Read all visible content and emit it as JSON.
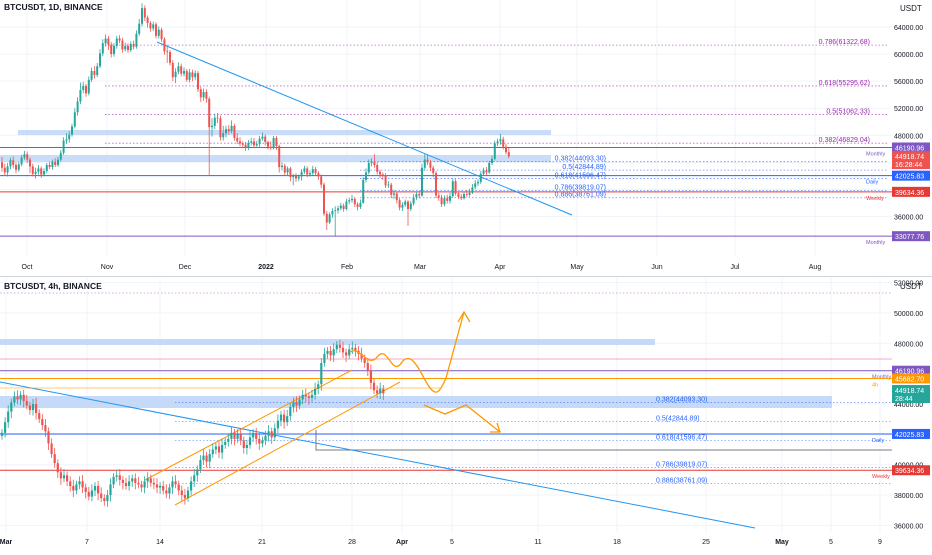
{
  "top_panel": {
    "title": "BTCUSDT, 1D, BINANCE",
    "currency": "USDT",
    "ylim": [
      30000,
      68000
    ],
    "y_ticks": [
      36000,
      40000,
      44000,
      48000,
      52000,
      56000,
      60000,
      64000
    ],
    "y_tick_labels": [
      "36000.00",
      "40000.00",
      "44000.00",
      "48000.00",
      "52000.00",
      "56000.00",
      "60000.00",
      "64000.00"
    ],
    "x_labels": [
      "Oct",
      "Nov",
      "Dec",
      "2022",
      "Feb",
      "Mar",
      "Apr",
      "May",
      "Jun",
      "Jul",
      "Aug"
    ],
    "fib_levels": [
      {
        "label": "0.786(61322.68)",
        "value": 61322.68,
        "color": "#9c27b0"
      },
      {
        "label": "0.618(55295.62)",
        "value": 55295.62,
        "color": "#9c27b0"
      },
      {
        "label": "0.5(51062.33)",
        "value": 51062.33,
        "color": "#9c27b0"
      },
      {
        "label": "0.382(46829.04)",
        "value": 46829.04,
        "color": "#9c27b0"
      },
      {
        "label": "0.382(44093.30)",
        "value": 44093.3,
        "color": "#2962ff"
      },
      {
        "label": "0.5(42844.89)",
        "value": 42844.89,
        "color": "#2962ff"
      },
      {
        "label": "0.618(41596.47)",
        "value": 41596.47,
        "color": "#2962ff"
      },
      {
        "label": "0.786(39819.07)",
        "value": 39819.07,
        "color": "#2962ff"
      },
      {
        "label": "0.886(38761.09)",
        "value": 38761.09,
        "color": "#2962ff"
      }
    ],
    "level_lines": [
      {
        "value": 46190.96,
        "label": "46190.96",
        "tag": "Monthly",
        "color": "#7e57c2"
      },
      {
        "value": 42025.83,
        "label": "42025.83",
        "tag": "Daily",
        "color": "#2962ff"
      },
      {
        "value": 39634.36,
        "label": "39634.36",
        "tag": "Weekly",
        "color": "#e53935"
      },
      {
        "value": 33077.76,
        "label": "33077.76",
        "tag": "Monthly",
        "color": "#7e57c2"
      }
    ],
    "price_tag": {
      "value": 44918.74,
      "label": "44918.74",
      "sub": "16:28:44",
      "color": "#ef5350"
    },
    "candles": [
      [
        44000,
        43200,
        44800,
        42600
      ],
      [
        43200,
        42500,
        43800,
        42000
      ],
      [
        42500,
        43400,
        43900,
        41900
      ],
      [
        43400,
        44300,
        44700,
        43000
      ],
      [
        44300,
        43600,
        44900,
        43100
      ],
      [
        43600,
        42900,
        44000,
        42400
      ],
      [
        42900,
        43700,
        44100,
        42600
      ],
      [
        43700,
        44700,
        45100,
        43400
      ],
      [
        44700,
        45200,
        45700,
        44400
      ],
      [
        45200,
        44400,
        45600,
        43900
      ],
      [
        44400,
        43400,
        44700,
        42400
      ],
      [
        43400,
        42300,
        43800,
        41900
      ],
      [
        42300,
        42600,
        43200,
        41600
      ],
      [
        42600,
        43100,
        43600,
        42200
      ],
      [
        43100,
        42200,
        43400,
        41700
      ],
      [
        42200,
        42700,
        43100,
        41900
      ],
      [
        42700,
        43600,
        43900,
        42400
      ],
      [
        43600,
        43300,
        44100,
        43000
      ],
      [
        43300,
        44100,
        44400,
        42900
      ],
      [
        44100,
        43600,
        44600,
        43300
      ],
      [
        43600,
        44400,
        44800,
        43300
      ],
      [
        44400,
        45400,
        45800,
        44100
      ],
      [
        45400,
        47200,
        47700,
        45100
      ],
      [
        47200,
        47400,
        48300,
        46700
      ],
      [
        47400,
        48100,
        48600,
        46900
      ],
      [
        48100,
        49300,
        49700,
        47800
      ],
      [
        49300,
        51400,
        52000,
        49000
      ],
      [
        51400,
        53000,
        53600,
        50900
      ],
      [
        53000,
        54700,
        55800,
        52600
      ],
      [
        54700,
        55300,
        55900,
        54200
      ],
      [
        55300,
        54200,
        55600,
        53700
      ],
      [
        54200,
        56200,
        56700,
        53900
      ],
      [
        56200,
        57500,
        58000,
        55900
      ],
      [
        57500,
        56900,
        58200,
        56400
      ],
      [
        56900,
        58200,
        58700,
        56600
      ],
      [
        58200,
        60100,
        60700,
        57900
      ],
      [
        60100,
        61600,
        62200,
        59700
      ],
      [
        61600,
        62300,
        62900,
        61100
      ],
      [
        62300,
        61400,
        62700,
        60600
      ],
      [
        61400,
        60000,
        61800,
        59500
      ],
      [
        60000,
        61200,
        61600,
        59600
      ],
      [
        61200,
        62300,
        62700,
        60800
      ],
      [
        62300,
        62000,
        62800,
        61600
      ],
      [
        62000,
        60700,
        62400,
        60200
      ],
      [
        60700,
        61200,
        61700,
        60400
      ],
      [
        61200,
        60600,
        61600,
        60200
      ],
      [
        60600,
        61500,
        61900,
        60300
      ],
      [
        61500,
        61100,
        62000,
        60700
      ],
      [
        61100,
        63000,
        63500,
        60800
      ],
      [
        63000,
        64500,
        65200,
        62700
      ],
      [
        64500,
        66800,
        67500,
        64100
      ],
      [
        66800,
        65400,
        67200,
        64900
      ],
      [
        65400,
        64600,
        65700,
        63900
      ],
      [
        64600,
        63800,
        64900,
        63300
      ],
      [
        63800,
        64400,
        64800,
        63400
      ],
      [
        64400,
        62700,
        64700,
        62300
      ],
      [
        62700,
        63600,
        64100,
        62300
      ],
      [
        63600,
        62200,
        63900,
        61800
      ],
      [
        62200,
        60400,
        62500,
        59900
      ],
      [
        60400,
        60300,
        61400,
        58700
      ],
      [
        60300,
        58700,
        60600,
        58300
      ],
      [
        58700,
        56600,
        59100,
        56000
      ],
      [
        56600,
        57400,
        57900,
        55700
      ],
      [
        57400,
        58200,
        58800,
        57000
      ],
      [
        58200,
        57100,
        58600,
        56700
      ],
      [
        57100,
        57500,
        58000,
        56700
      ],
      [
        57500,
        56200,
        57800,
        55900
      ],
      [
        56200,
        57300,
        57800,
        55800
      ],
      [
        57300,
        56600,
        57700,
        56000
      ],
      [
        56600,
        57200,
        57600,
        56200
      ],
      [
        57200,
        54800,
        57500,
        54400
      ],
      [
        54800,
        53600,
        55200,
        52900
      ],
      [
        53600,
        54400,
        54900,
        53100
      ],
      [
        54400,
        53400,
        54800,
        52800
      ],
      [
        53400,
        49200,
        53700,
        42000
      ],
      [
        49200,
        49400,
        50500,
        47800
      ],
      [
        49400,
        50600,
        51200,
        48900
      ],
      [
        50600,
        50500,
        51300,
        49800
      ],
      [
        50500,
        47700,
        50900,
        47200
      ],
      [
        47700,
        48300,
        49400,
        47200
      ],
      [
        48300,
        48900,
        49400,
        47700
      ],
      [
        48900,
        48600,
        49500,
        48100
      ],
      [
        48600,
        49400,
        50200,
        48300
      ],
      [
        49400,
        47600,
        49700,
        47200
      ],
      [
        47600,
        47100,
        48300,
        46700
      ],
      [
        47100,
        46800,
        47700,
        46400
      ],
      [
        46800,
        46600,
        47100,
        46100
      ],
      [
        46600,
        46200,
        47000,
        45700
      ],
      [
        46200,
        46900,
        47300,
        45800
      ],
      [
        46900,
        47100,
        47600,
        46500
      ],
      [
        47100,
        46500,
        47600,
        46100
      ],
      [
        46500,
        46700,
        47200,
        46100
      ],
      [
        46700,
        47500,
        47900,
        46200
      ],
      [
        47500,
        47800,
        48400,
        47200
      ],
      [
        47800,
        47000,
        48100,
        46500
      ],
      [
        47000,
        46300,
        47200,
        45900
      ],
      [
        46300,
        46100,
        47100,
        45800
      ],
      [
        46100,
        47600,
        47900,
        45900
      ],
      [
        47600,
        46400,
        47900,
        45800
      ],
      [
        46400,
        43300,
        46600,
        42500
      ],
      [
        43300,
        43500,
        44000,
        42800
      ],
      [
        43500,
        42500,
        43800,
        42000
      ],
      [
        42500,
        43100,
        43400,
        42100
      ],
      [
        43100,
        41800,
        43300,
        41200
      ],
      [
        41800,
        42000,
        42300,
        40600
      ],
      [
        42000,
        41600,
        42400,
        41100
      ],
      [
        41600,
        41900,
        42200,
        41200
      ],
      [
        41900,
        42600,
        43000,
        41300
      ],
      [
        42600,
        43100,
        43500,
        42300
      ],
      [
        43100,
        42200,
        43400,
        41800
      ],
      [
        42200,
        42400,
        42800,
        41900
      ],
      [
        42400,
        43000,
        43500,
        42100
      ],
      [
        43000,
        42400,
        43300,
        42000
      ],
      [
        42400,
        41900,
        42700,
        41400
      ],
      [
        41900,
        40700,
        42200,
        40200
      ],
      [
        40700,
        36400,
        41000,
        36100
      ],
      [
        36400,
        35100,
        36800,
        34000
      ],
      [
        35100,
        36300,
        36600,
        34900
      ],
      [
        36300,
        36800,
        37200,
        35800
      ],
      [
        36800,
        36900,
        37500,
        33000
      ],
      [
        36900,
        37200,
        37600,
        36400
      ],
      [
        37200,
        37600,
        38000,
        36900
      ],
      [
        37600,
        37100,
        37900,
        36700
      ],
      [
        37100,
        38200,
        38600,
        36900
      ],
      [
        38200,
        38400,
        38800,
        37800
      ],
      [
        38400,
        38600,
        39200,
        38000
      ],
      [
        38600,
        37800,
        38900,
        37400
      ],
      [
        37800,
        37400,
        38100,
        36900
      ],
      [
        37400,
        38000,
        38500,
        37100
      ],
      [
        38000,
        41400,
        41800,
        37900
      ],
      [
        41400,
        42500,
        43100,
        41000
      ],
      [
        42500,
        43900,
        44400,
        42200
      ],
      [
        43900,
        44100,
        44600,
        43400
      ],
      [
        44100,
        43600,
        45200,
        43200
      ],
      [
        43600,
        42600,
        44000,
        42200
      ],
      [
        42600,
        42200,
        42900,
        41700
      ],
      [
        42200,
        42100,
        42500,
        41400
      ],
      [
        42100,
        40600,
        42400,
        40200
      ],
      [
        40600,
        40700,
        41200,
        40200
      ],
      [
        40700,
        39200,
        41000,
        38700
      ],
      [
        39200,
        39400,
        39900,
        38600
      ],
      [
        39400,
        38400,
        39700,
        37900
      ],
      [
        38400,
        37300,
        38700,
        36900
      ],
      [
        37300,
        37700,
        38100,
        36800
      ],
      [
        37700,
        38200,
        38500,
        37400
      ],
      [
        38200,
        37100,
        38400,
        34600
      ],
      [
        37100,
        37900,
        38300,
        36800
      ],
      [
        37900,
        38800,
        39300,
        37600
      ],
      [
        38800,
        39300,
        39700,
        38400
      ],
      [
        39300,
        39100,
        39800,
        38700
      ],
      [
        39100,
        43200,
        43800,
        38900
      ],
      [
        43200,
        44400,
        45300,
        42800
      ],
      [
        44400,
        44000,
        45100,
        43600
      ],
      [
        44000,
        43200,
        44300,
        42700
      ],
      [
        43200,
        42400,
        43500,
        41800
      ],
      [
        42400,
        39100,
        42700,
        38700
      ],
      [
        39100,
        38800,
        39500,
        38300
      ],
      [
        38800,
        37800,
        39200,
        37400
      ],
      [
        37800,
        38700,
        39100,
        37500
      ],
      [
        38700,
        38300,
        39200,
        37900
      ],
      [
        38300,
        39000,
        39500,
        37900
      ],
      [
        39000,
        41200,
        41600,
        38800
      ],
      [
        41200,
        39400,
        41500,
        39100
      ],
      [
        39400,
        38900,
        39700,
        38600
      ],
      [
        38900,
        38700,
        39300,
        38400
      ],
      [
        38700,
        39300,
        39600,
        38500
      ],
      [
        39300,
        39200,
        39900,
        38900
      ],
      [
        39200,
        39500,
        40100,
        38900
      ],
      [
        39500,
        40300,
        40800,
        39300
      ],
      [
        40300,
        40900,
        41400,
        40000
      ],
      [
        40900,
        41100,
        41500,
        40500
      ],
      [
        41100,
        42300,
        42700,
        40800
      ],
      [
        42300,
        42800,
        43200,
        42000
      ],
      [
        42800,
        42500,
        43300,
        42100
      ],
      [
        42500,
        43900,
        44200,
        42300
      ],
      [
        43900,
        44500,
        45000,
        43600
      ],
      [
        44500,
        46800,
        47200,
        44300
      ],
      [
        46800,
        47100,
        47500,
        46400
      ],
      [
        47100,
        47400,
        48200,
        46600
      ],
      [
        47400,
        46300,
        47800,
        45900
      ],
      [
        46300,
        45500,
        46700,
        45200
      ],
      [
        45500,
        44900,
        46200,
        44600
      ]
    ]
  },
  "bottom_panel": {
    "title": "BTCUSDT, 4h, BINANCE",
    "currency": "USDT",
    "ylim": [
      35500,
      52300
    ],
    "y_ticks": [
      36000,
      38000,
      40000,
      42000,
      44000,
      46000,
      48000,
      50000,
      52000
    ],
    "y_tick_labels": [
      "36000.00",
      "38000.00",
      "40000.00",
      "42000.00",
      "44000.00",
      "46000.00",
      "48000.00",
      "50000.00",
      "52000.00"
    ],
    "x_labels": [
      "Mar",
      "7",
      "14",
      "21",
      "28",
      "Apr",
      "5",
      "11",
      "18",
      "25",
      "May",
      "5",
      "9"
    ],
    "fib_levels": [
      {
        "label": "0.382(44093.30)",
        "value": 44093.3,
        "color": "#2962ff"
      },
      {
        "label": "0.5(42844.89)",
        "value": 42844.89,
        "color": "#2962ff"
      },
      {
        "label": "0.618(41596.47)",
        "value": 41596.47,
        "color": "#2962ff"
      },
      {
        "label": "0.786(39819.07)",
        "value": 39819.07,
        "color": "#2962ff"
      },
      {
        "label": "0.886(38761.09)",
        "value": 38761.09,
        "color": "#2962ff"
      }
    ],
    "level_lines": [
      {
        "value": 46190.96,
        "label": "46190.96",
        "tag": "Monthly",
        "color": "#7e57c2"
      },
      {
        "value": 45682.7,
        "label": "45682.70",
        "tag": "4h",
        "color": "#ff9800"
      },
      {
        "value": 42025.83,
        "label": "42025.83",
        "tag": "Daily",
        "color": "#2962ff"
      },
      {
        "value": 39634.36,
        "label": "39634.36",
        "tag": "Weekly",
        "color": "#e53935"
      }
    ],
    "price_tag": {
      "value": 44918.74,
      "label": "44918.74",
      "sub": "28:44",
      "color": "#26a69a"
    },
    "closes": [
      42100,
      42800,
      43500,
      44100,
      44500,
      44300,
      44600,
      44200,
      43900,
      43600,
      44000,
      43400,
      43000,
      42600,
      42200,
      41400,
      40700,
      40100,
      39500,
      39100,
      39300,
      38900,
      38600,
      38300,
      38700,
      38900,
      38500,
      38200,
      37900,
      38300,
      38600,
      38100,
      37800,
      37600,
      38000,
      38700,
      39200,
      39300,
      39000,
      38800,
      38600,
      38900,
      39100,
      38800,
      38700,
      38500,
      38900,
      39100,
      38800,
      38700,
      38500,
      38600,
      38300,
      38100,
      38500,
      38900,
      38700,
      38300,
      38000,
      37800,
      38300,
      38900,
      39300,
      39700,
      40300,
      40600,
      40200,
      40700,
      41000,
      41200,
      40800,
      41300,
      41500,
      41700,
      42100,
      41700,
      42000,
      41600,
      41100,
      41300,
      41800,
      42100,
      41700,
      41400,
      41600,
      41900,
      42200,
      41800,
      42400,
      42900,
      43300,
      42800,
      43200,
      43800,
      44100,
      43900,
      44300,
      44600,
      44500,
      44400,
      44600,
      45000,
      45300,
      46700,
      47300,
      47500,
      47200,
      47600,
      47900,
      47700,
      47400,
      47200,
      47600,
      47700,
      47500,
      47300,
      47000,
      46700,
      46200,
      45400,
      44900,
      44700,
      45000,
      44700
    ],
    "channel_lower_label": "",
    "projection_up": "",
    "projection_down": ""
  },
  "colors": {
    "up": "#26a69a",
    "down": "#ef5350",
    "trendline": "#2196f3",
    "channel": "#ff9800",
    "zone": "#bbd4f7",
    "grid": "#f0f3fa",
    "axis_text": "#131722"
  }
}
